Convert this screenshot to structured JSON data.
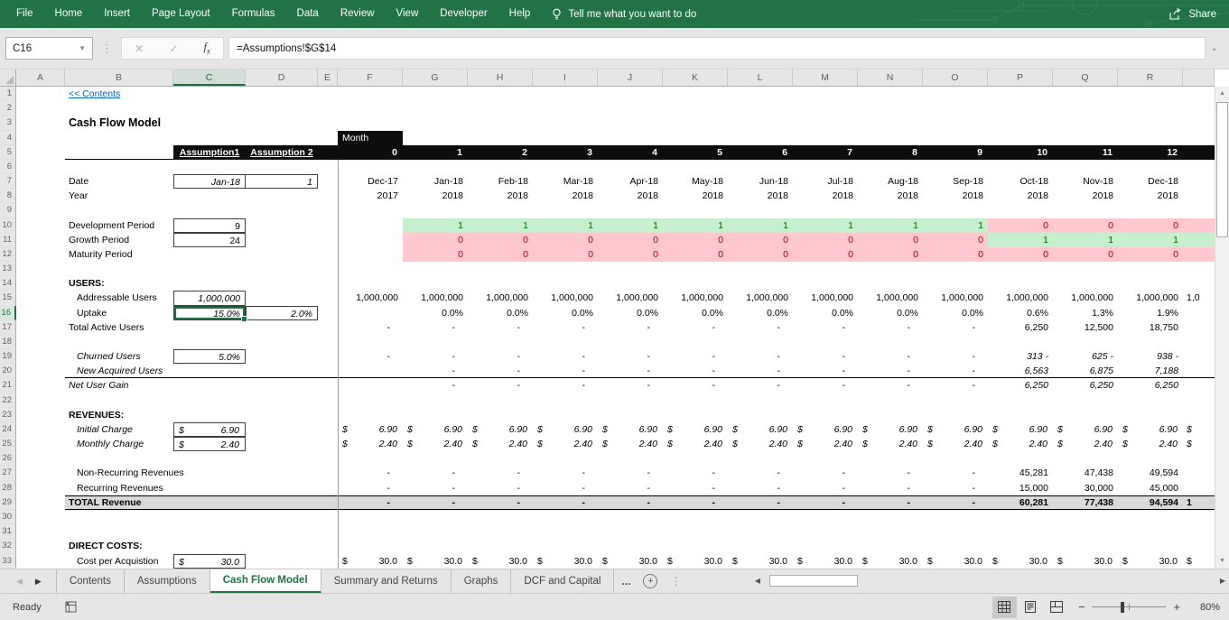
{
  "ribbon": {
    "menus": [
      "File",
      "Home",
      "Insert",
      "Page Layout",
      "Formulas",
      "Data",
      "Review",
      "View",
      "Developer",
      "Help"
    ],
    "tell_me": "Tell me what you want to do",
    "share_label": "Share"
  },
  "formula_bar": {
    "name_box": "C16",
    "formula": "=Assumptions!$G$14"
  },
  "selected": {
    "cell": "C16",
    "column": "C",
    "row": 16
  },
  "columns": [
    "A",
    "B",
    "C",
    "D",
    "E",
    "F",
    "G",
    "H",
    "I",
    "J",
    "K",
    "L",
    "M",
    "N",
    "O",
    "P",
    "Q",
    "R"
  ],
  "sheet": {
    "rows": [
      {
        "n": 1,
        "cells": [
          {
            "c": "B",
            "s": "link",
            "t": "<< Contents"
          }
        ]
      },
      {
        "n": 2,
        "cells": []
      },
      {
        "n": 3,
        "cells": [
          {
            "c": "B",
            "e": "D",
            "s": "title",
            "t": "Cash Flow Model"
          }
        ]
      },
      {
        "n": 4,
        "cells": [
          {
            "c": "F",
            "s": "black pl",
            "t": "Month"
          }
        ]
      },
      {
        "n": 5,
        "cells": [
          {
            "c": "B",
            "e": "S",
            "s": "bb"
          },
          {
            "c": "C",
            "e": "S",
            "s": "black"
          },
          {
            "c": "C",
            "s": "asm",
            "t": "Assumption1"
          },
          {
            "c": "D",
            "s": "asm",
            "t": "Assumption 2"
          },
          {
            "c": "F",
            "to": "R",
            "s": "mnum",
            "t": [
              "0",
              "1",
              "2",
              "3",
              "4",
              "5",
              "6",
              "7",
              "8",
              "9",
              "10",
              "11",
              "12"
            ]
          }
        ]
      },
      {
        "n": 6,
        "cells": []
      },
      {
        "n": 7,
        "cells": [
          {
            "c": "B",
            "t": "Date"
          },
          {
            "c": "C",
            "s": "box i r",
            "t": "Jan-18"
          },
          {
            "c": "D",
            "s": "box nl i r",
            "t": "1"
          },
          {
            "c": "F",
            "to": "R",
            "s": "r",
            "t": [
              "Dec-17",
              "Jan-18",
              "Feb-18",
              "Mar-18",
              "Apr-18",
              "May-18",
              "Jun-18",
              "Jul-18",
              "Aug-18",
              "Sep-18",
              "Oct-18",
              "Nov-18",
              "Dec-18"
            ]
          }
        ]
      },
      {
        "n": 8,
        "cells": [
          {
            "c": "B",
            "t": "Year"
          },
          {
            "c": "F",
            "to": "R",
            "s": "r",
            "t": [
              "2017",
              "2018",
              "2018",
              "2018",
              "2018",
              "2018",
              "2018",
              "2018",
              "2018",
              "2018",
              "2018",
              "2018",
              "2018"
            ]
          }
        ]
      },
      {
        "n": 9,
        "cells": []
      },
      {
        "n": 10,
        "cells": [
          {
            "c": "B",
            "t": "Development Period"
          },
          {
            "c": "C",
            "s": "box r",
            "t": "9"
          },
          {
            "c": "G",
            "e": "O",
            "s": "good-bg"
          },
          {
            "c": "P",
            "e": "S",
            "s": "bad-bg"
          },
          {
            "c": "G",
            "to": "O",
            "s": "r good",
            "t": "1"
          },
          {
            "c": "P",
            "to": "R",
            "s": "r bad",
            "t": "0"
          }
        ]
      },
      {
        "n": 11,
        "cells": [
          {
            "c": "B",
            "t": "Growth Period"
          },
          {
            "c": "C",
            "s": "box r",
            "t": "24"
          },
          {
            "c": "G",
            "e": "O",
            "s": "bad-bg"
          },
          {
            "c": "P",
            "e": "S",
            "s": "good-bg"
          },
          {
            "c": "G",
            "to": "O",
            "s": "r bad",
            "t": "0"
          },
          {
            "c": "P",
            "to": "R",
            "s": "r good",
            "t": "1"
          }
        ]
      },
      {
        "n": 12,
        "cells": [
          {
            "c": "B",
            "t": "Maturity Period"
          },
          {
            "c": "G",
            "e": "S",
            "s": "bad-bg"
          },
          {
            "c": "G",
            "to": "R",
            "s": "r bad",
            "t": "0"
          }
        ]
      },
      {
        "n": 13,
        "cells": []
      },
      {
        "n": 14,
        "cells": [
          {
            "c": "B",
            "s": "b",
            "t": "USERS:"
          }
        ]
      },
      {
        "n": 15,
        "cells": [
          {
            "c": "B",
            "s": "ind",
            "t": "Addressable Users"
          },
          {
            "c": "C",
            "s": "box i r",
            "t": "1,000,000"
          },
          {
            "c": "F",
            "to": "R",
            "s": "r",
            "t": "1,000,000"
          },
          {
            "c": "S",
            "s": "clip",
            "t": "1,0"
          }
        ]
      },
      {
        "n": 16,
        "cells": [
          {
            "c": "B",
            "s": "ind",
            "t": "Uptake"
          },
          {
            "c": "C",
            "s": "box i r sel",
            "t": "15.0%"
          },
          {
            "c": "D",
            "s": "box i r",
            "t": "2.0%"
          },
          {
            "c": "G",
            "to": "O",
            "s": "r",
            "t": "0.0%"
          },
          {
            "c": "P",
            "s": "r",
            "t": "0.6%"
          },
          {
            "c": "Q",
            "s": "r",
            "t": "1.3%"
          },
          {
            "c": "R",
            "s": "r",
            "t": "1.9%"
          }
        ]
      },
      {
        "n": 17,
        "cells": [
          {
            "c": "B",
            "t": "Total Active Users"
          },
          {
            "c": "F",
            "to": "O",
            "s": "dash",
            "t": "-"
          },
          {
            "c": "P",
            "s": "r",
            "t": "6,250"
          },
          {
            "c": "Q",
            "s": "r",
            "t": "12,500"
          },
          {
            "c": "R",
            "s": "r",
            "t": "18,750"
          }
        ]
      },
      {
        "n": 18,
        "cells": []
      },
      {
        "n": 19,
        "cells": [
          {
            "c": "B",
            "s": "ind i",
            "t": "Churned Users"
          },
          {
            "c": "C",
            "s": "box i r",
            "t": "5.0%"
          },
          {
            "c": "F",
            "to": "O",
            "s": "dash",
            "t": "-"
          },
          {
            "c": "P",
            "s": "r i",
            "t": "313 -"
          },
          {
            "c": "Q",
            "s": "r i",
            "t": "625 -"
          },
          {
            "c": "R",
            "s": "r i",
            "t": "938 -"
          }
        ]
      },
      {
        "n": 20,
        "cells": [
          {
            "c": "B",
            "e": "S",
            "s": "bb"
          },
          {
            "c": "B",
            "s": "ind i",
            "t": "New Acquired Users"
          },
          {
            "c": "G",
            "to": "O",
            "s": "dash",
            "t": "-"
          },
          {
            "c": "P",
            "s": "r i",
            "t": "6,563"
          },
          {
            "c": "Q",
            "s": "r i",
            "t": "6,875"
          },
          {
            "c": "R",
            "s": "r i",
            "t": "7,188"
          }
        ]
      },
      {
        "n": 21,
        "cells": [
          {
            "c": "B",
            "s": "i",
            "t": "Net User Gain"
          },
          {
            "c": "G",
            "to": "O",
            "s": "dash",
            "t": "-"
          },
          {
            "c": "P",
            "to": "R",
            "s": "r i",
            "t": "6,250"
          }
        ]
      },
      {
        "n": 22,
        "cells": []
      },
      {
        "n": 23,
        "cells": [
          {
            "c": "B",
            "s": "b",
            "t": "REVENUES:"
          }
        ]
      },
      {
        "n": 24,
        "cells": [
          {
            "c": "B",
            "s": "ind i",
            "t": "Initial Charge"
          },
          {
            "c": "C",
            "s": "box money i",
            "t": "6.90"
          },
          {
            "c": "F",
            "to": "R",
            "s": "money i",
            "t": "6.90"
          },
          {
            "c": "S",
            "s": "i",
            "t": "$"
          }
        ]
      },
      {
        "n": 25,
        "cells": [
          {
            "c": "B",
            "s": "ind i",
            "t": "Monthly Charge"
          },
          {
            "c": "C",
            "s": "box money i",
            "t": "2.40"
          },
          {
            "c": "F",
            "to": "R",
            "s": "money i",
            "t": "2.40"
          },
          {
            "c": "S",
            "s": "i",
            "t": "$"
          }
        ]
      },
      {
        "n": 26,
        "cells": []
      },
      {
        "n": 27,
        "cells": [
          {
            "c": "B",
            "s": "ind",
            "t": "Non-Recurring Revenues"
          },
          {
            "c": "F",
            "to": "O",
            "s": "dash",
            "t": "-"
          },
          {
            "c": "P",
            "s": "r",
            "t": "45,281"
          },
          {
            "c": "Q",
            "s": "r",
            "t": "47,438"
          },
          {
            "c": "R",
            "s": "r",
            "t": "49,594"
          }
        ]
      },
      {
        "n": 28,
        "cells": [
          {
            "c": "B",
            "s": "ind",
            "t": "Recurring Revenues"
          },
          {
            "c": "F",
            "to": "O",
            "s": "dash",
            "t": "-"
          },
          {
            "c": "P",
            "s": "r",
            "t": "15,000"
          },
          {
            "c": "Q",
            "s": "r",
            "t": "30,000"
          },
          {
            "c": "R",
            "s": "r",
            "t": "45,000"
          }
        ]
      },
      {
        "n": 29,
        "cells": [
          {
            "c": "B",
            "e": "S",
            "s": "total-band"
          },
          {
            "c": "B",
            "s": "b",
            "t": "TOTAL Revenue"
          },
          {
            "c": "F",
            "to": "O",
            "s": "dash b",
            "t": "-"
          },
          {
            "c": "P",
            "s": "r b",
            "t": "60,281"
          },
          {
            "c": "Q",
            "s": "r b",
            "t": "77,438"
          },
          {
            "c": "R",
            "s": "r b",
            "t": "94,594"
          },
          {
            "c": "S",
            "s": "clip b",
            "t": "1"
          }
        ]
      },
      {
        "n": 30,
        "cells": []
      },
      {
        "n": 31,
        "cells": []
      },
      {
        "n": 32,
        "cells": [
          {
            "c": "B",
            "s": "b",
            "t": "DIRECT COSTS:"
          }
        ]
      },
      {
        "n": 33,
        "cells": [
          {
            "c": "B",
            "s": "ind",
            "t": "Cost per Acquistion"
          },
          {
            "c": "C",
            "s": "box money i",
            "t": "30.0"
          },
          {
            "c": "F",
            "to": "R",
            "s": "money",
            "t": "30.0"
          },
          {
            "c": "S",
            "t": "$"
          }
        ]
      }
    ]
  },
  "tabs": {
    "items": [
      "Contents",
      "Assumptions",
      "Cash Flow Model",
      "Summary and Returns",
      "Graphs",
      "DCF and Capital"
    ],
    "active": "Cash Flow Model",
    "overflow": "..."
  },
  "status_bar": {
    "mode": "Ready",
    "zoom": "80%"
  }
}
